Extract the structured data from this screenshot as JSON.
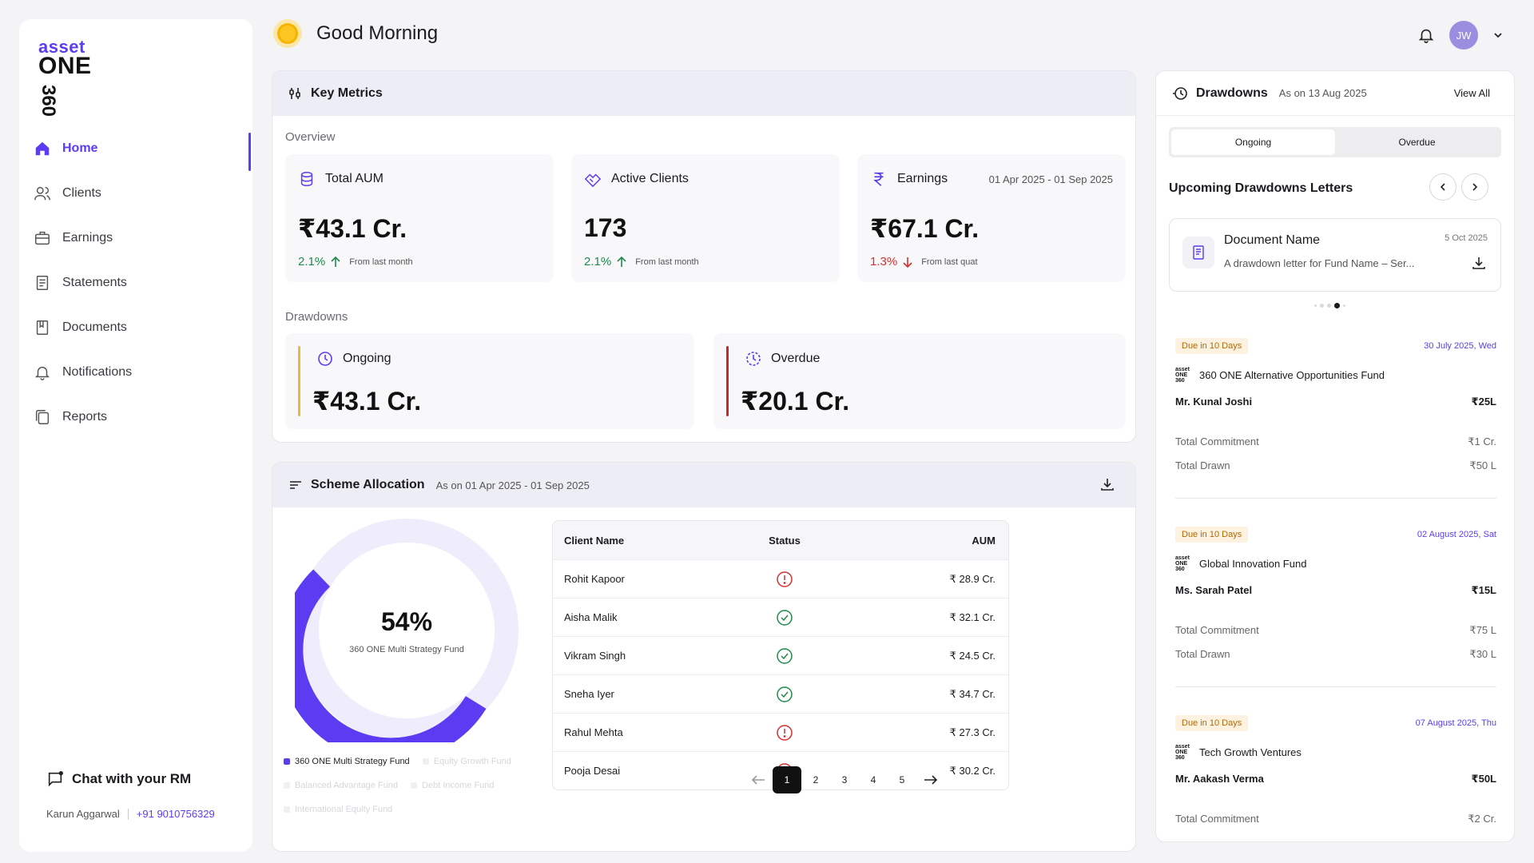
{
  "brand": {
    "line1": "asset",
    "line2": "ONE",
    "line3": "360"
  },
  "sidebar": {
    "items": [
      {
        "label": "Home",
        "icon": "home-icon"
      },
      {
        "label": "Clients",
        "icon": "users-icon"
      },
      {
        "label": "Earnings",
        "icon": "briefcase-icon"
      },
      {
        "label": "Statements",
        "icon": "statement-icon"
      },
      {
        "label": "Documents",
        "icon": "document-icon"
      },
      {
        "label": "Notifications",
        "icon": "bell-icon"
      },
      {
        "label": "Reports",
        "icon": "reports-icon"
      }
    ],
    "active": "Home",
    "chat_label": "Chat with your RM",
    "rm_name": "Karun Aggarwal",
    "rm_phone": "+91 9010756329"
  },
  "header": {
    "greeting": "Good Morning",
    "avatar_initials": "JW"
  },
  "key_metrics": {
    "title": "Key Metrics",
    "overview_label": "Overview",
    "cards": [
      {
        "label": "Total AUM",
        "value": "₹43.1 Cr.",
        "change": "2.1%",
        "direction": "up",
        "note": "From last month",
        "date": ""
      },
      {
        "label": "Active Clients",
        "value": "173",
        "change": "2.1%",
        "direction": "up",
        "note": "From last month",
        "date": ""
      },
      {
        "label": "Earnings",
        "value": "₹67.1 Cr.",
        "change": "1.3%",
        "direction": "down",
        "note": "From last quat",
        "date": "01 Apr 2025 - 01 Sep 2025"
      }
    ],
    "drawdowns_label": "Drawdowns",
    "drawdowns": [
      {
        "label": "Ongoing",
        "value": "₹43.1 Cr.",
        "color": "#e8b84a"
      },
      {
        "label": "Overdue",
        "value": "₹20.1 Cr.",
        "color": "#c62828"
      }
    ]
  },
  "scheme": {
    "title": "Scheme Allocation",
    "subtitle": "As on 01 Apr 2025 - 01 Sep 2025",
    "donut_percent": "54%",
    "donut_fraction": 0.54,
    "donut_fund": "360 ONE Multi Strategy Fund",
    "accent": "#5b3cf2",
    "legend": [
      {
        "label": "360 ONE Multi Strategy Fund",
        "active": true
      },
      {
        "label": "Equity Growth Fund",
        "active": false
      },
      {
        "label": "Balanced Advantage Fund",
        "active": false
      },
      {
        "label": "Debt Income Fund",
        "active": false
      },
      {
        "label": "International Equity Fund",
        "active": false
      }
    ],
    "columns": [
      "Client Name",
      "Status",
      "AUM"
    ],
    "rows": [
      {
        "name": "Rohit Kapoor",
        "status": "alert",
        "aum": "₹ 28.9 Cr."
      },
      {
        "name": "Aisha Malik",
        "status": "ok",
        "aum": "₹ 32.1 Cr."
      },
      {
        "name": "Vikram Singh",
        "status": "ok",
        "aum": "₹ 24.5 Cr."
      },
      {
        "name": "Sneha Iyer",
        "status": "ok",
        "aum": "₹ 34.7 Cr."
      },
      {
        "name": "Rahul Mehta",
        "status": "alert",
        "aum": "₹ 27.3 Cr."
      },
      {
        "name": "Pooja Desai",
        "status": "alert",
        "aum": "₹ 30.2 Cr."
      }
    ],
    "pages": [
      "1",
      "2",
      "3",
      "4",
      "5"
    ],
    "current_page": "1"
  },
  "drawdowns_panel": {
    "title": "Drawdowns",
    "as_on": "As on 13 Aug 2025",
    "view_all": "View All",
    "tabs": [
      "Ongoing",
      "Overdue"
    ],
    "active_tab": "Ongoing",
    "upcoming_title": "Upcoming Drawdowns Letters",
    "doc": {
      "name": "Document Name",
      "date": "5 Oct 2025",
      "desc": "A drawdown letter for Fund Name – Ser..."
    },
    "funds": [
      {
        "due": "Due in 10 Days",
        "date": "30 July 2025, Wed",
        "fund": "360 ONE Alternative Opportunities Fund",
        "investor": "Mr. Kunal Joshi",
        "amount": "₹25L",
        "commit_label": "Total Commitment",
        "commit": "₹1 Cr.",
        "drawn_label": "Total Drawn",
        "drawn": "₹50 L"
      },
      {
        "due": "Due in 10 Days",
        "date": "02 August 2025, Sat",
        "fund": "Global Innovation Fund",
        "investor": "Ms. Sarah Patel",
        "amount": "₹15L",
        "commit_label": "Total Commitment",
        "commit": "₹75 L",
        "drawn_label": "Total Drawn",
        "drawn": "₹30 L"
      },
      {
        "due": "Due in 10 Days",
        "date": "07 August 2025, Thu",
        "fund": "Tech Growth Ventures",
        "investor": "Mr. Aakash Verma",
        "amount": "₹50L",
        "commit_label": "Total Commitment",
        "commit": "₹2 Cr."
      }
    ]
  }
}
